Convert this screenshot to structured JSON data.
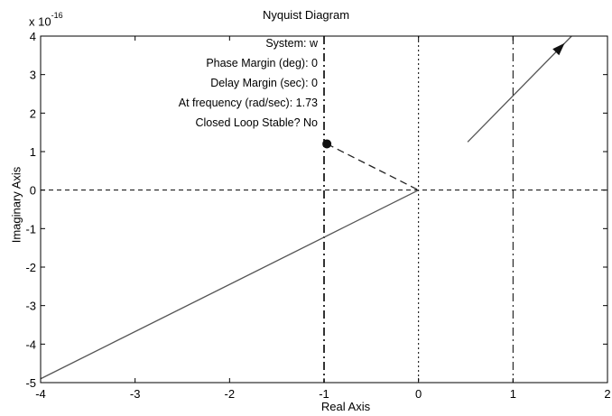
{
  "chart_data": {
    "type": "line",
    "title": "Nyquist Diagram",
    "xlabel": "Real Axis",
    "ylabel": "Imaginary Axis",
    "y_exponent_base": "x 10",
    "y_exponent_power": "-16",
    "xlim": [
      -4,
      2
    ],
    "ylim": [
      -5,
      4
    ],
    "xticks": [
      "-4",
      "-3",
      "-2",
      "-1",
      "0",
      "1",
      "2"
    ],
    "yticks": [
      "-5",
      "-4",
      "-3",
      "-2",
      "-1",
      "0",
      "1",
      "2",
      "3",
      "4"
    ],
    "grid": false,
    "series": [
      {
        "style": "solid",
        "x": [
          -4.0,
          0.0
        ],
        "y": [
          -4.9,
          0.0
        ]
      },
      {
        "style": "solid",
        "x": [
          0.52,
          1.62
        ],
        "y": [
          1.25,
          4.0
        ]
      },
      {
        "style": "dashed",
        "x": [
          -0.97,
          0.0
        ],
        "y": [
          1.2,
          0.0
        ]
      }
    ],
    "markers": [
      {
        "shape": "circle",
        "x": -0.97,
        "y": 1.2
      },
      {
        "shape": "arrow",
        "x": 1.5,
        "y": 3.7
      }
    ],
    "reference_lines": [
      {
        "orientation": "vertical",
        "value": 0,
        "style": "dotted"
      },
      {
        "orientation": "horizontal",
        "value": 0,
        "style": "dashed"
      },
      {
        "orientation": "vertical",
        "value": -1,
        "style": "dashdot"
      },
      {
        "orientation": "vertical",
        "value": 1,
        "style": "dashdot"
      }
    ],
    "annotations": [
      "System: w",
      "Phase Margin (deg): 0",
      "Delay Margin (sec): 0",
      "At frequency (rad/sec): 1.73",
      "Closed Loop Stable? No"
    ]
  }
}
